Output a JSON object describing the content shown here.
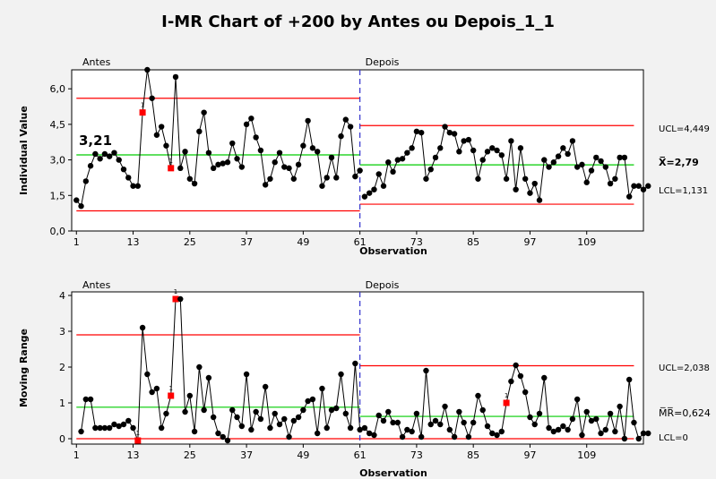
{
  "chart_data": {
    "type": "line",
    "title": "I-MR Chart of +200 by Antes ou Depois_1_1",
    "xlabel": "Observation",
    "x_ticks": [
      1,
      13,
      25,
      37,
      49,
      61,
      73,
      85,
      97,
      109
    ],
    "xlim": [
      0,
      121
    ],
    "stage_split": 61,
    "stages": [
      "Antes",
      "Depois"
    ],
    "colors": {
      "data": "#000000",
      "limits": "#ff0000",
      "center": "#00cc00",
      "split": "#3333cc",
      "flagged": "#ff0000"
    },
    "panels": [
      {
        "id": "individual",
        "ylabel": "Individual Value",
        "ylim": [
          0,
          6.8
        ],
        "y_ticks": [
          "0,0",
          "1,5",
          "3,0",
          "4,5",
          "6,0"
        ],
        "y_tick_values": [
          0,
          1.5,
          3,
          4.5,
          6
        ],
        "stage_lines": [
          {
            "stage": "Antes",
            "x_range": [
              1,
              61
            ],
            "ucl": 5.6,
            "center": 3.21,
            "lcl": 0.85
          },
          {
            "stage": "Depois",
            "x_range": [
              61,
              119
            ],
            "ucl": 4.449,
            "center": 2.79,
            "lcl": 1.131
          }
        ],
        "inner_label": "3,21",
        "right_labels": [
          "UCL=4,449",
          "X̅=2,79",
          "LCL=1,131"
        ],
        "flags": [
          {
            "x": 15,
            "label": "1"
          },
          {
            "x": 21,
            "label": "1"
          }
        ],
        "values": [
          1.3,
          1.05,
          2.1,
          2.75,
          3.25,
          3.05,
          3.25,
          3.15,
          3.3,
          3.0,
          2.6,
          2.25,
          1.9,
          1.9,
          5.0,
          6.8,
          5.6,
          4.05,
          4.4,
          3.6,
          2.65,
          6.5,
          2.65,
          3.35,
          2.2,
          2.0,
          4.2,
          5.0,
          3.3,
          2.65,
          2.8,
          2.85,
          2.9,
          3.7,
          3.05,
          2.7,
          4.5,
          4.75,
          3.95,
          3.4,
          1.95,
          2.2,
          2.9,
          3.3,
          2.7,
          2.65,
          2.2,
          2.8,
          3.6,
          4.65,
          3.5,
          3.35,
          1.9,
          2.25,
          3.1,
          2.25,
          4.0,
          4.7,
          4.4,
          2.3,
          2.55,
          1.45,
          1.6,
          1.75,
          2.4,
          1.9,
          2.9,
          2.5,
          3.0,
          3.05,
          3.3,
          3.5,
          4.2,
          4.15,
          2.2,
          2.6,
          3.1,
          3.5,
          4.4,
          4.15,
          4.1,
          3.35,
          3.8,
          3.85,
          3.4,
          2.2,
          3.0,
          3.35,
          3.5,
          3.4,
          3.2,
          2.2,
          3.8,
          1.75,
          3.5,
          2.2,
          1.6,
          2.0,
          1.3,
          3.0,
          2.7,
          2.9,
          3.15,
          3.5,
          3.25,
          3.8,
          2.7,
          2.8,
          2.05,
          2.55,
          3.1,
          2.95,
          2.7,
          2.0,
          2.2,
          3.1,
          3.1,
          1.45,
          1.9,
          1.9,
          1.75,
          1.9
        ]
      },
      {
        "id": "moving-range",
        "ylabel": "Moving Range",
        "ylim": [
          -0.15,
          4.1
        ],
        "y_ticks": [
          "0",
          "1",
          "2",
          "3",
          "4"
        ],
        "y_tick_values": [
          0,
          1,
          2,
          3,
          4
        ],
        "stage_lines": [
          {
            "stage": "Antes",
            "x_range": [
              1,
              61
            ],
            "ucl": 2.9,
            "center": 0.88,
            "lcl": 0
          },
          {
            "stage": "Depois",
            "x_range": [
              61,
              119
            ],
            "ucl": 2.038,
            "center": 0.624,
            "lcl": 0
          }
        ],
        "right_labels": [
          "UCL=2,038",
          "M̅R̅=0,624",
          "LCL=0"
        ],
        "flags": [
          {
            "x": 14,
            "label": "1"
          },
          {
            "x": 21,
            "label": "1"
          },
          {
            "x": 22,
            "label": "1"
          },
          {
            "x": 92,
            "label": "1"
          }
        ],
        "values": [
          null,
          0.2,
          1.1,
          1.1,
          0.3,
          0.3,
          0.3,
          0.3,
          0.4,
          0.35,
          0.4,
          0.5,
          0.3,
          -0.05,
          3.1,
          1.8,
          1.3,
          1.4,
          0.3,
          0.7,
          1.2,
          3.9,
          3.9,
          0.75,
          1.2,
          0.2,
          2.0,
          0.8,
          1.7,
          0.6,
          0.15,
          0.05,
          -0.05,
          0.8,
          0.6,
          0.35,
          1.8,
          0.25,
          0.75,
          0.55,
          1.45,
          0.3,
          0.7,
          0.4,
          0.55,
          0.05,
          0.5,
          0.6,
          0.8,
          1.05,
          1.1,
          0.15,
          1.4,
          0.3,
          0.8,
          0.85,
          1.8,
          0.7,
          0.3,
          2.1,
          0.25,
          0.3,
          0.15,
          0.1,
          0.65,
          0.5,
          0.75,
          0.45,
          0.45,
          0.05,
          0.25,
          0.2,
          0.7,
          0.05,
          1.9,
          0.4,
          0.5,
          0.4,
          0.9,
          0.25,
          0.05,
          0.75,
          0.45,
          0.05,
          0.45,
          1.2,
          0.8,
          0.35,
          0.15,
          0.1,
          0.2,
          1.0,
          1.6,
          2.05,
          1.75,
          1.3,
          0.6,
          0.4,
          0.7,
          1.7,
          0.3,
          0.2,
          0.25,
          0.35,
          0.25,
          0.55,
          1.1,
          0.1,
          0.75,
          0.5,
          0.55,
          0.15,
          0.25,
          0.7,
          0.2,
          0.9,
          0.0,
          1.65,
          0.45,
          0.0,
          0.15,
          0.15
        ]
      }
    ]
  }
}
